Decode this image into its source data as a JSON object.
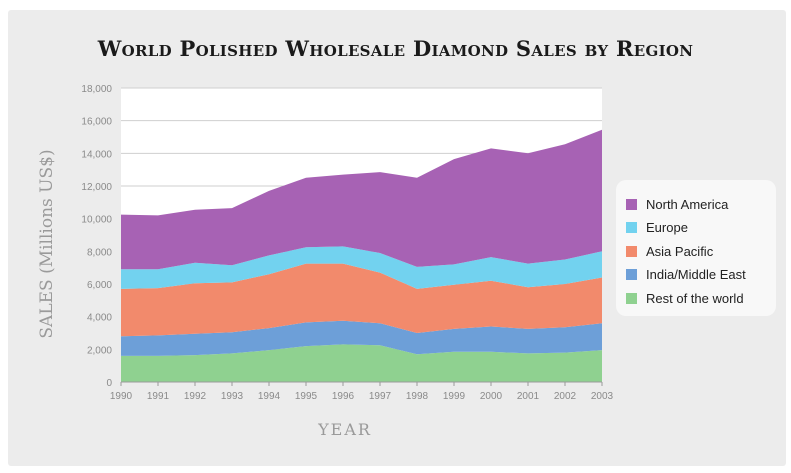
{
  "chart_data": {
    "type": "area",
    "stacked": true,
    "title": "World Polished Wholesale Diamond Sales by Region",
    "xlabel": "YEAR",
    "ylabel": "SALES (Millions US$)",
    "ylim": [
      0,
      18000
    ],
    "y_ticks": [
      "0",
      "2,000",
      "4,000",
      "6,000",
      "8,000",
      "10,000",
      "12,000",
      "14,000",
      "16,000",
      "18,000"
    ],
    "x": [
      "1990",
      "1991",
      "1992",
      "1993",
      "1994",
      "1995",
      "1996",
      "1997",
      "1998",
      "1999",
      "2000",
      "2001",
      "2002",
      "2003"
    ],
    "grid": true,
    "legend_position": "right",
    "series": [
      {
        "name": "Rest of the world",
        "color": "#8fd190",
        "values": [
          1600,
          1600,
          1650,
          1750,
          1950,
          2200,
          2300,
          2250,
          1700,
          1850,
          1850,
          1750,
          1800,
          1950
        ]
      },
      {
        "name": "India/Middle East",
        "color": "#6d9fd8",
        "values": [
          1200,
          1250,
          1300,
          1300,
          1350,
          1450,
          1450,
          1350,
          1300,
          1400,
          1550,
          1500,
          1550,
          1650
        ]
      },
      {
        "name": "Asia Pacific",
        "color": "#f28a6c",
        "values": [
          2900,
          2900,
          3100,
          3050,
          3300,
          3600,
          3500,
          3100,
          2700,
          2700,
          2800,
          2550,
          2650,
          2800
        ]
      },
      {
        "name": "Europe",
        "color": "#72d2ef",
        "values": [
          1200,
          1150,
          1250,
          1050,
          1150,
          1000,
          1050,
          1200,
          1350,
          1250,
          1450,
          1450,
          1500,
          1600
        ]
      },
      {
        "name": "North America",
        "color": "#a762b4",
        "values": [
          3350,
          3300,
          3250,
          3500,
          3950,
          4250,
          4400,
          4950,
          5450,
          6450,
          6650,
          6750,
          7050,
          7450
        ]
      }
    ]
  }
}
